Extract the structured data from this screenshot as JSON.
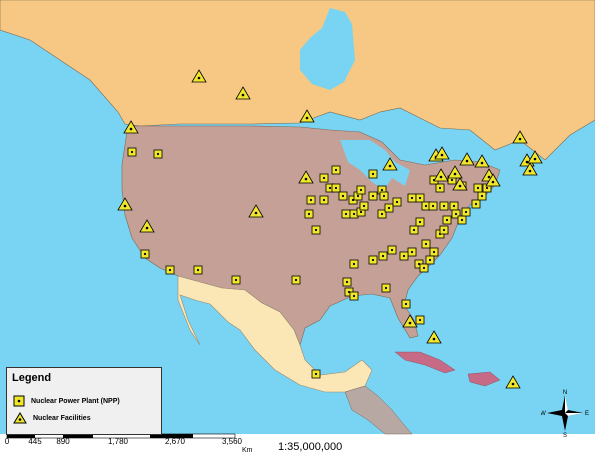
{
  "legend": {
    "title": "Legend",
    "items": [
      {
        "label": "Nuclear Power Plant (NPP)",
        "symbol": "square"
      },
      {
        "label": "Nuclear Facilities",
        "symbol": "triangle"
      }
    ]
  },
  "scale_bar": {
    "ticks": [
      "0",
      "445",
      "890",
      "1,780",
      "2,670",
      "3,560"
    ],
    "unit": "Km",
    "ratio": "1:35,000,000"
  },
  "compass": {
    "n": "N",
    "s": "S",
    "e": "E",
    "w": "W"
  },
  "colors": {
    "ocean": "#79d3f2",
    "canada": "#f6c883",
    "usa": "#c4a097",
    "mexico": "#fbe7b6",
    "central_america": "#b8a8a3",
    "caribbean": "#c66a85",
    "marker_yellow": "#f0e62a"
  }
}
